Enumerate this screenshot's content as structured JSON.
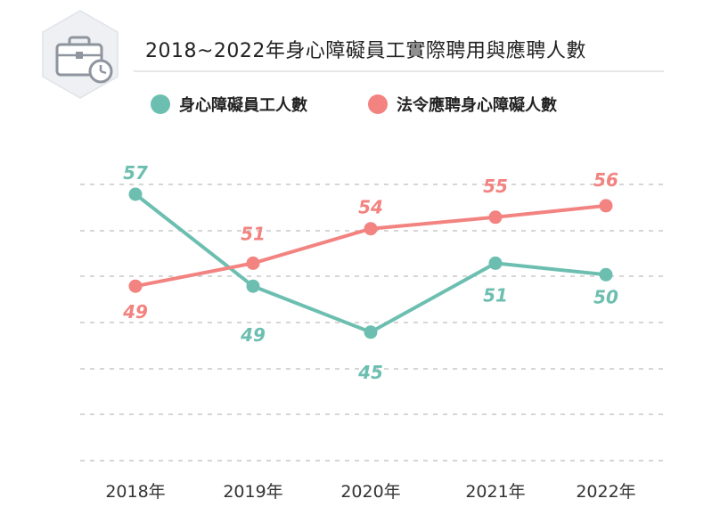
{
  "header": {
    "title": "2018~2022年身心障礙員工實際聘用與應聘人數",
    "icon": "briefcase-clock-icon"
  },
  "chart_data": {
    "type": "line",
    "title": "2018~2022年身心障礙員工實際聘用與應聘人數",
    "xlabel": "",
    "ylabel": "",
    "categories": [
      "2018年",
      "2019年",
      "2020年",
      "2021年",
      "2022年"
    ],
    "series": [
      {
        "name": "身心障礙員工人數",
        "color": "#6cbfb0",
        "values": [
          57,
          49,
          45,
          51,
          50
        ]
      },
      {
        "name": "法令應聘身心障礙人數",
        "color": "#f28380",
        "values": [
          49,
          51,
          54,
          55,
          56
        ]
      }
    ],
    "legend_position": "top-left",
    "grid": true,
    "grid_style": "dashed",
    "y_axis_visible": false
  },
  "colors": {
    "teal": "#6cbfb0",
    "salmon": "#f28380",
    "grid": "#bdbdbd",
    "icon_bg": "#eef0f3",
    "icon_stroke": "#9aa1aa"
  }
}
